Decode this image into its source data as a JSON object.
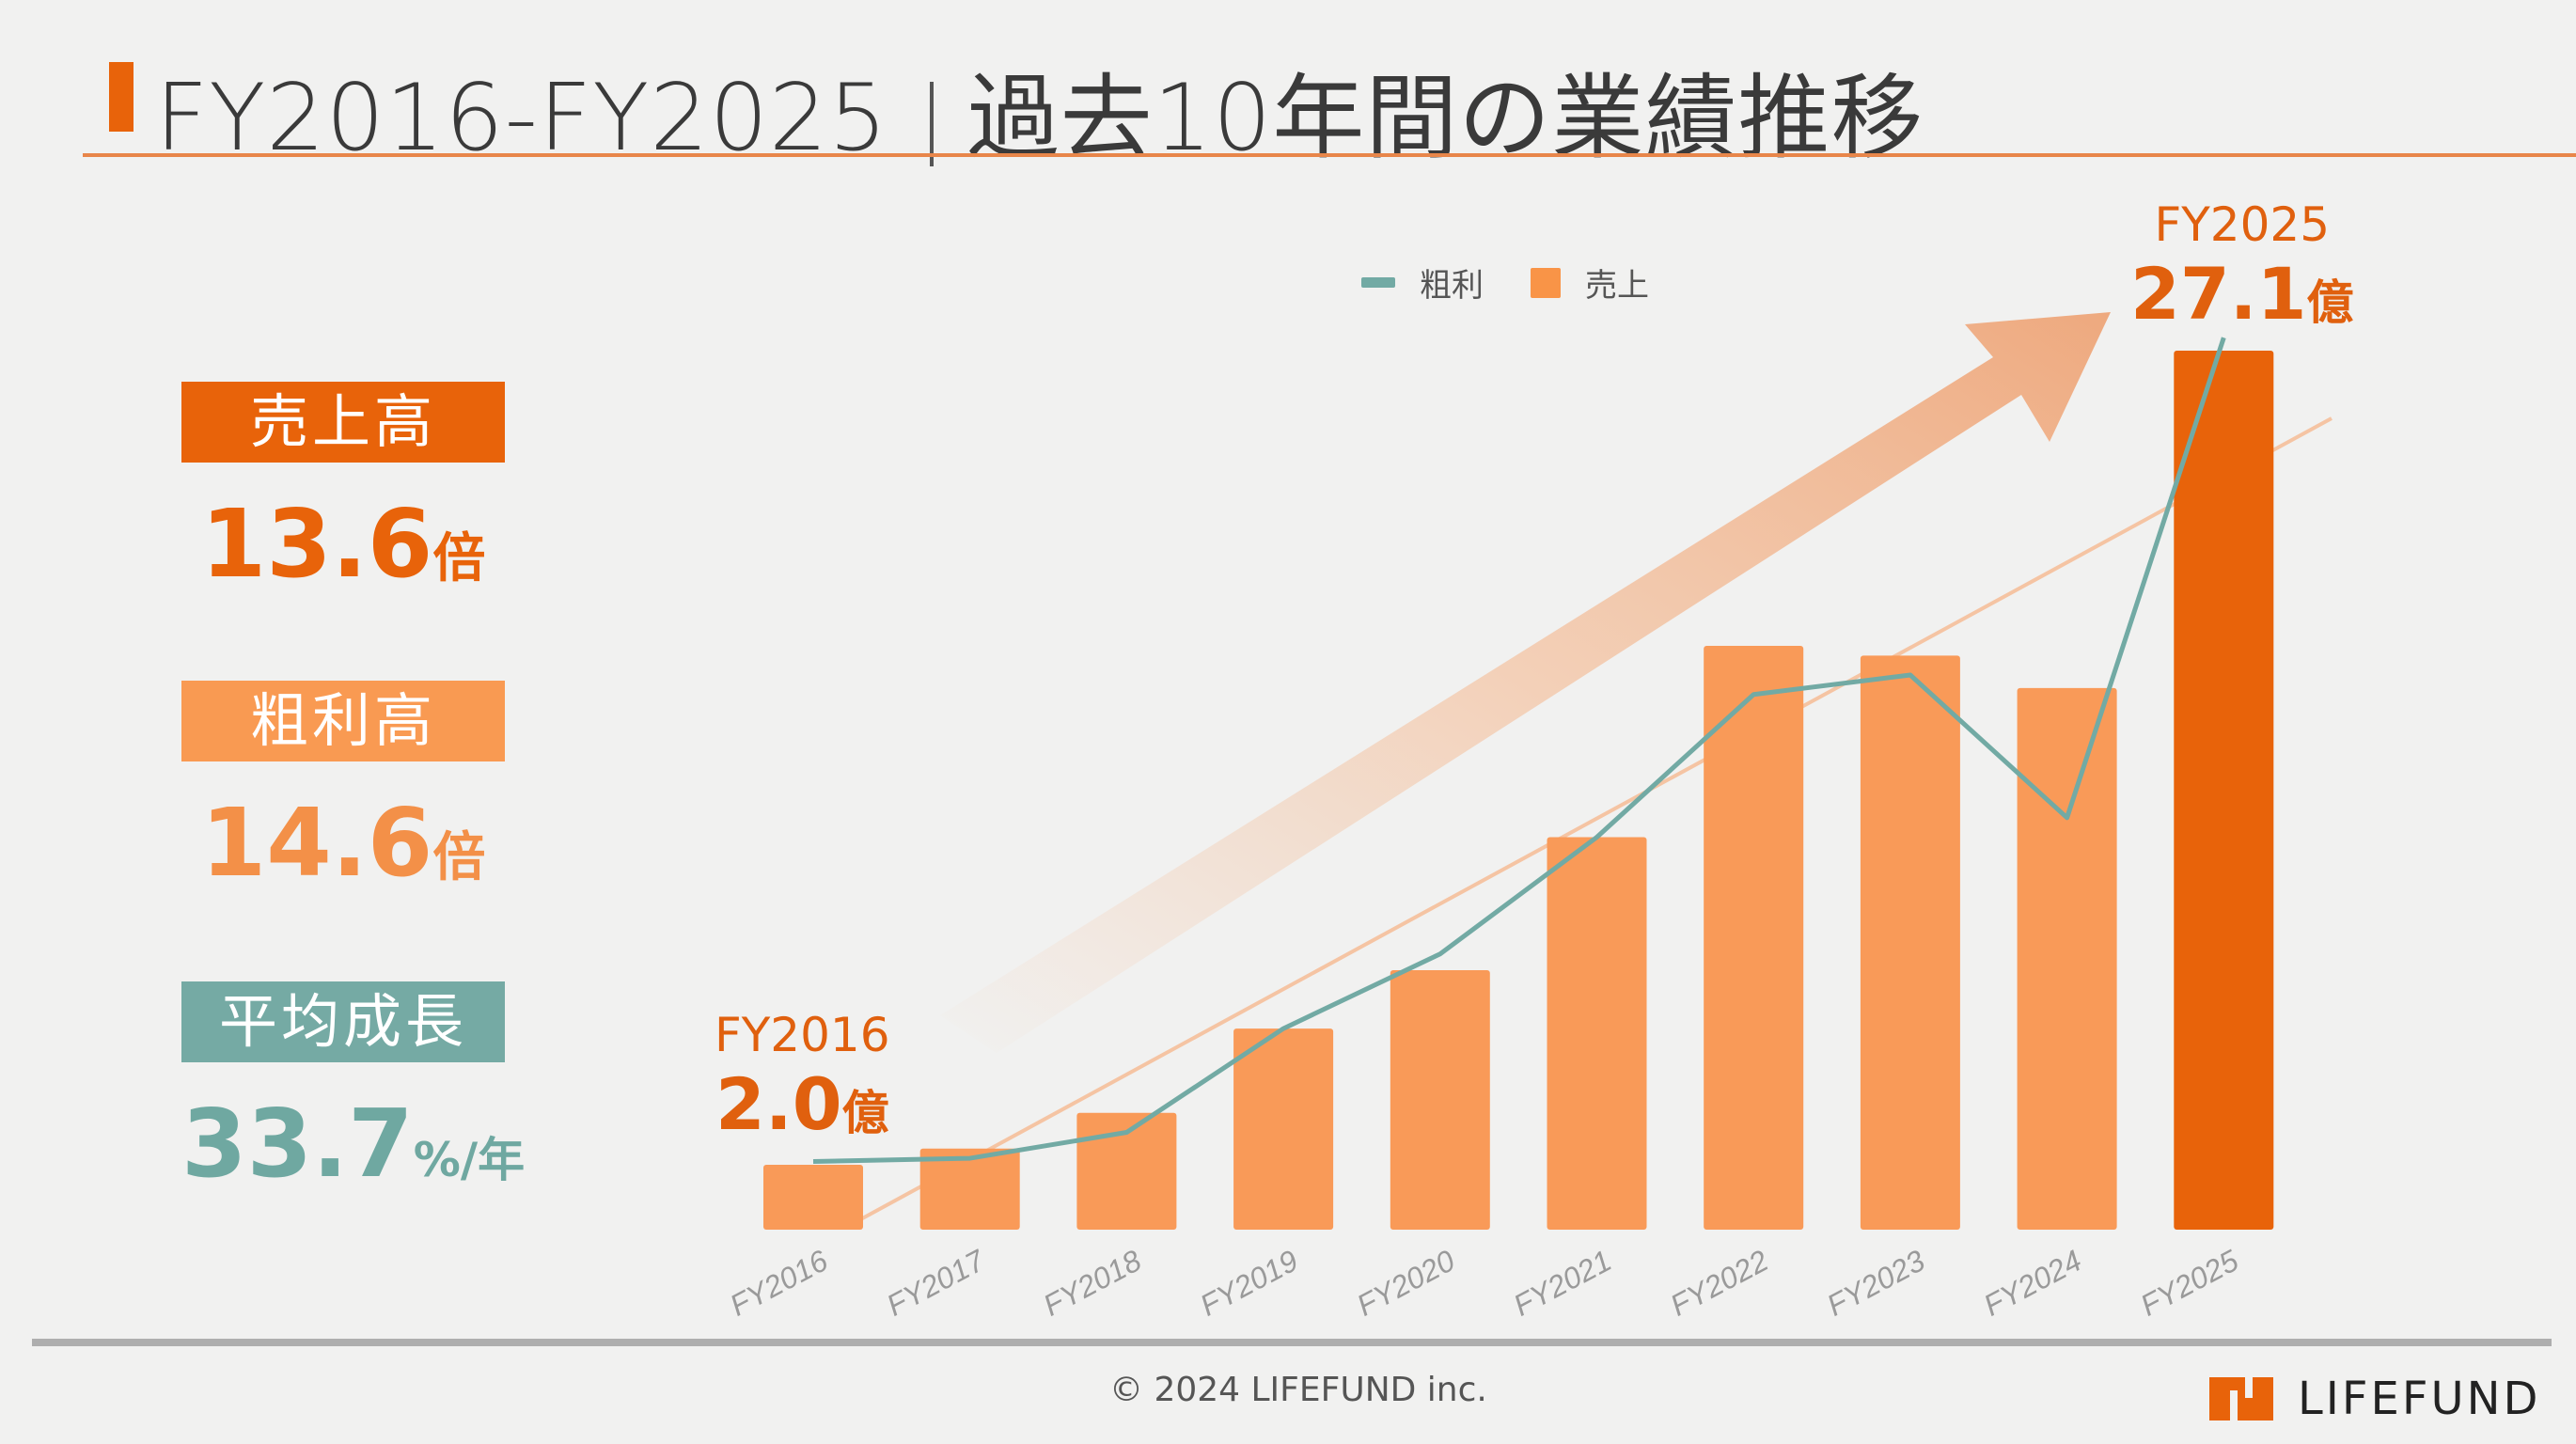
{
  "header": {
    "title_left": "FY2016-FY2025",
    "title_right": "過去10年間の業績推移"
  },
  "kpis": [
    {
      "label": "売上高",
      "value": "13.6",
      "unit": "倍",
      "color": "#e8630a",
      "label_bg": "#e8630a"
    },
    {
      "label": "粗利高",
      "value": "14.6",
      "unit": "倍",
      "color": "#f39048",
      "label_bg": "#f99a52"
    },
    {
      "label": "平均成長",
      "value": "33.7",
      "unit": "%/年",
      "color": "#6fa8a1",
      "label_bg": "#75aaa4"
    }
  ],
  "callouts": {
    "start": {
      "year": "FY2016",
      "value": "2.0",
      "unit": "億"
    },
    "end": {
      "year": "FY2025",
      "value": "27.1",
      "unit": "億"
    }
  },
  "footer": {
    "copyright": "© 2024 LIFEFUND inc.",
    "logo_text": "LIFEFUND"
  },
  "colors": {
    "accent": "#e8630a",
    "bar": "#f99a58",
    "bar_highlight": "#e8630a",
    "line": "#72aaa4",
    "trend": "#f5c4a3"
  },
  "chart_data": {
    "type": "bar",
    "title": "",
    "xlabel": "",
    "ylabel": "",
    "categories": [
      "FY2016",
      "FY2017",
      "FY2018",
      "FY2019",
      "FY2020",
      "FY2021",
      "FY2022",
      "FY2023",
      "FY2024",
      "FY2025"
    ],
    "series": [
      {
        "name": "売上",
        "kind": "bar",
        "unit": "億",
        "values": [
          2.0,
          2.5,
          3.6,
          6.2,
          8.0,
          12.1,
          18.0,
          17.7,
          16.7,
          27.1
        ]
      },
      {
        "name": "粗利",
        "kind": "line",
        "unit": "relative",
        "values": [
          2.1,
          2.2,
          3.0,
          6.2,
          8.5,
          12.1,
          16.5,
          17.1,
          12.7,
          27.5
        ]
      }
    ],
    "legend": {
      "position": "top-center",
      "entries": [
        "粗利",
        "売上"
      ]
    },
    "ylim": [
      0,
      28
    ],
    "grid": false,
    "annotations": [
      "FY2016 2.0億",
      "FY2025 27.1億",
      "upward trend arrow",
      "linear trend line"
    ]
  }
}
